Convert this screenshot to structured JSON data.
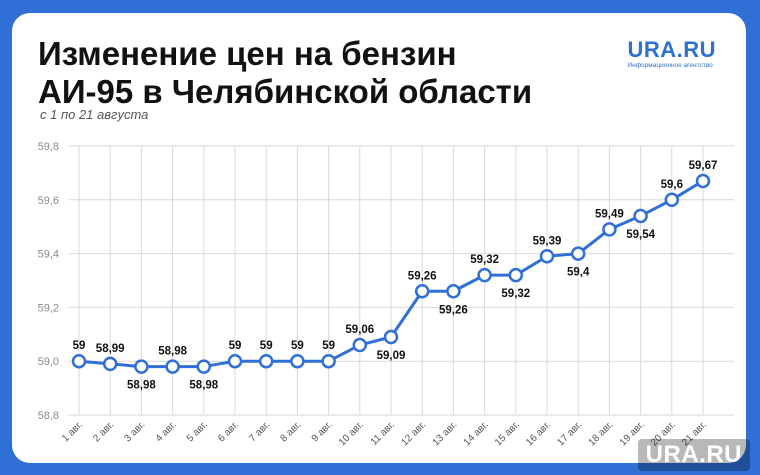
{
  "header": {
    "title_line1": "Изменение цен на бензин",
    "title_line2": "АИ-95 в Челябинской области",
    "subtitle": "с 1 по 21 августа"
  },
  "brand": {
    "logo": "URA.RU",
    "logo_sub": "Информационное агентство",
    "watermark": "URA.RU"
  },
  "colors": {
    "background": "#2f6fd6",
    "line": "#2f6fd6",
    "grid": "#d9d9d9"
  },
  "chart_data": {
    "type": "line",
    "categories": [
      "1 авг.",
      "2 авг.",
      "3 авг.",
      "4 авг.",
      "5 авг.",
      "6 авг.",
      "7 авг.",
      "8 авг.",
      "9 авг.",
      "10 авг.",
      "11 авг.",
      "12 авг.",
      "13 авг.",
      "14 авг.",
      "15 авг.",
      "16 авг.",
      "17 авг.",
      "18 авг.",
      "19 авг.",
      "20 авг.",
      "21 авг."
    ],
    "values": [
      59.0,
      58.99,
      58.98,
      58.98,
      58.98,
      59.0,
      59.0,
      59.0,
      59.0,
      59.06,
      59.09,
      59.26,
      59.26,
      59.32,
      59.32,
      59.39,
      59.4,
      59.49,
      59.54,
      59.6,
      59.67
    ],
    "data_labels": [
      "59",
      "58,99",
      "58,98",
      "58,98",
      "58,98",
      "59",
      "59",
      "59",
      "59",
      "59,06",
      "59,09",
      "59,26",
      "59,26",
      "59,32",
      "59,32",
      "59,39",
      "59,4",
      "59,49",
      "59,54",
      "59,6",
      "59,67"
    ],
    "label_position": [
      "above",
      "above",
      "below",
      "above",
      "below",
      "above",
      "above",
      "above",
      "above",
      "above",
      "below",
      "above",
      "below",
      "above",
      "below",
      "above",
      "below",
      "above",
      "below",
      "above",
      "above"
    ],
    "ylim": [
      58.8,
      59.8
    ],
    "yticks": [
      58.8,
      59.0,
      59.2,
      59.4,
      59.6,
      59.8
    ],
    "ytick_labels": [
      "58,8",
      "59,0",
      "59,2",
      "59,4",
      "59,6",
      "59,8"
    ],
    "xlabel": "",
    "ylabel": "",
    "grid": true
  }
}
